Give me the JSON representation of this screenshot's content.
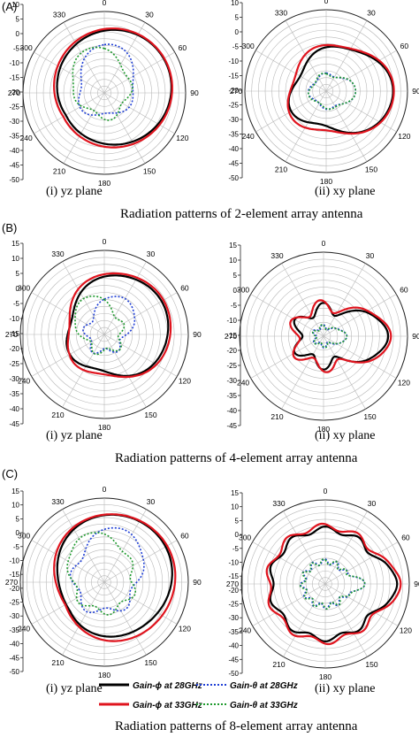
{
  "figure": {
    "rows": [
      {
        "label": "(A)",
        "caption": "Radiation patterns of 2-element array antenna"
      },
      {
        "label": "(B)",
        "caption": "Radiation patterns of 4-element array antenna"
      },
      {
        "label": "(C)",
        "caption": "Radiation patterns of 8-element array antenna"
      }
    ],
    "plane_labels": [
      "(i) yz plane",
      "(ii) xy plane"
    ],
    "legend": [
      {
        "text": "Gain-ϕ at 28GHz",
        "color": "#000000",
        "dash": "solid"
      },
      {
        "text": "Gain-θ at 28GHz",
        "color": "#1f3fd6",
        "dash": "dotted"
      },
      {
        "text": "Gain-ϕ at 33GHz",
        "color": "#e0141e",
        "dash": "solid"
      },
      {
        "text": "Gain-θ at 33GHz",
        "color": "#1f9a2e",
        "dash": "dotted"
      }
    ]
  },
  "chart_data": [
    {
      "type": "polar",
      "panel": "A-i",
      "angles": [
        0,
        30,
        60,
        90,
        120,
        150,
        180,
        210,
        240,
        270,
        300,
        330
      ],
      "r_ticks": [
        10,
        5,
        0,
        -5,
        -10,
        -15,
        -20,
        -25,
        -30,
        -35,
        -40,
        -45,
        -50
      ],
      "r_range": [
        -50,
        10
      ],
      "series": [
        {
          "name": "Gain-ϕ at 28GHz",
          "peak_dir": 60,
          "peak": 7,
          "floor": -22,
          "width": 80,
          "lobes": 0
        },
        {
          "name": "Gain-θ at 28GHz",
          "peak_dir": 10,
          "peak": -8,
          "floor": -35,
          "width": 40,
          "lobes": 3
        },
        {
          "name": "Gain-ϕ at 33GHz",
          "peak_dir": 60,
          "peak": 7,
          "floor": -20,
          "width": 85,
          "lobes": 0
        },
        {
          "name": "Gain-θ at 33GHz",
          "peak_dir": 340,
          "peak": -10,
          "floor": -35,
          "width": 40,
          "lobes": 4
        }
      ]
    },
    {
      "type": "polar",
      "panel": "A-ii",
      "angles": [
        0,
        30,
        60,
        90,
        120,
        150,
        180,
        210,
        240,
        270,
        300,
        330
      ],
      "r_ticks": [
        10,
        5,
        0,
        -5,
        -10,
        -15,
        -20,
        -25,
        -30,
        -35,
        -40,
        -45,
        -50
      ],
      "r_range": [
        -50,
        10
      ],
      "series": [
        {
          "name": "Gain-ϕ at 28GHz",
          "peak_dir": 90,
          "peak": 7,
          "floor": -28,
          "width": 45,
          "lobes": 3
        },
        {
          "name": "Gain-θ at 28GHz",
          "peak_dir": 90,
          "peak": -25,
          "floor": -40,
          "width": 30,
          "lobes": 4
        },
        {
          "name": "Gain-ϕ at 33GHz",
          "peak_dir": 90,
          "peak": 7,
          "floor": -25,
          "width": 45,
          "lobes": 3
        },
        {
          "name": "Gain-θ at 33GHz",
          "peak_dir": 90,
          "peak": -25,
          "floor": -40,
          "width": 30,
          "lobes": 4
        }
      ]
    },
    {
      "type": "polar",
      "panel": "B-i",
      "angles": [
        0,
        30,
        60,
        90,
        120,
        150,
        180,
        210,
        240,
        270,
        300,
        330
      ],
      "r_ticks": [
        15,
        10,
        5,
        0,
        -5,
        -10,
        -15,
        -20,
        -25,
        -30,
        -35,
        -40,
        -45
      ],
      "r_range": [
        -45,
        15
      ],
      "series": [
        {
          "name": "Gain-ϕ at 28GHz",
          "peak_dir": 60,
          "peak": 10,
          "floor": -25,
          "width": 70,
          "lobes": 3
        },
        {
          "name": "Gain-θ at 28GHz",
          "peak_dir": 30,
          "peak": -10,
          "floor": -35,
          "width": 35,
          "lobes": 5
        },
        {
          "name": "Gain-ϕ at 33GHz",
          "peak_dir": 60,
          "peak": 12,
          "floor": -25,
          "width": 75,
          "lobes": 3
        },
        {
          "name": "Gain-θ at 33GHz",
          "peak_dir": 330,
          "peak": -10,
          "floor": -35,
          "width": 35,
          "lobes": 5
        }
      ]
    },
    {
      "type": "polar",
      "panel": "B-ii",
      "angles": [
        0,
        30,
        60,
        90,
        120,
        150,
        180,
        210,
        240,
        270,
        300,
        330
      ],
      "r_ticks": [
        15,
        10,
        5,
        0,
        -5,
        -10,
        -15,
        -20,
        -25,
        -30,
        -35,
        -40,
        -45
      ],
      "r_range": [
        -45,
        15
      ],
      "series": [
        {
          "name": "Gain-ϕ at 28GHz",
          "peak_dir": 90,
          "peak": 10,
          "floor": -30,
          "width": 25,
          "lobes": 6
        },
        {
          "name": "Gain-θ at 28GHz",
          "peak_dir": 90,
          "peak": -25,
          "floor": -40,
          "width": 20,
          "lobes": 6
        },
        {
          "name": "Gain-ϕ at 33GHz",
          "peak_dir": 90,
          "peak": 12,
          "floor": -28,
          "width": 25,
          "lobes": 6
        },
        {
          "name": "Gain-θ at 33GHz",
          "peak_dir": 90,
          "peak": -25,
          "floor": -40,
          "width": 20,
          "lobes": 6
        }
      ]
    },
    {
      "type": "polar",
      "panel": "C-i",
      "angles": [
        0,
        30,
        60,
        90,
        120,
        150,
        180,
        210,
        240,
        270,
        300,
        330
      ],
      "r_ticks": [
        15,
        10,
        5,
        0,
        -5,
        -10,
        -15,
        -20,
        -25,
        -30,
        -35,
        -40,
        -45,
        -50
      ],
      "r_range": [
        -50,
        15
      ],
      "series": [
        {
          "name": "Gain-ϕ at 28GHz",
          "peak_dir": 50,
          "peak": 12,
          "floor": -20,
          "width": 80,
          "lobes": 2
        },
        {
          "name": "Gain-θ at 28GHz",
          "peak_dir": 20,
          "peak": 0,
          "floor": -30,
          "width": 35,
          "lobes": 5
        },
        {
          "name": "Gain-ϕ at 33GHz",
          "peak_dir": 60,
          "peak": 13,
          "floor": -18,
          "width": 85,
          "lobes": 2
        },
        {
          "name": "Gain-θ at 33GHz",
          "peak_dir": 340,
          "peak": -5,
          "floor": -30,
          "width": 35,
          "lobes": 6
        }
      ]
    },
    {
      "type": "polar",
      "panel": "C-ii",
      "angles": [
        0,
        30,
        60,
        90,
        120,
        150,
        180,
        210,
        240,
        270,
        300,
        330
      ],
      "r_ticks": [
        15,
        10,
        5,
        0,
        -5,
        -10,
        -15,
        -20,
        -25,
        -30,
        -35,
        -40,
        -45,
        -50
      ],
      "r_range": [
        -50,
        15
      ],
      "series": [
        {
          "name": "Gain-ϕ at 28GHz",
          "peak_dir": 90,
          "peak": 10,
          "floor": -10,
          "width": 15,
          "lobes": 10
        },
        {
          "name": "Gain-θ at 28GHz",
          "peak_dir": 90,
          "peak": -15,
          "floor": -35,
          "width": 12,
          "lobes": 12
        },
        {
          "name": "Gain-ϕ at 33GHz",
          "peak_dir": 90,
          "peak": 13,
          "floor": -8,
          "width": 15,
          "lobes": 10
        },
        {
          "name": "Gain-θ at 33GHz",
          "peak_dir": 90,
          "peak": -15,
          "floor": -35,
          "width": 12,
          "lobes": 12
        }
      ]
    }
  ]
}
